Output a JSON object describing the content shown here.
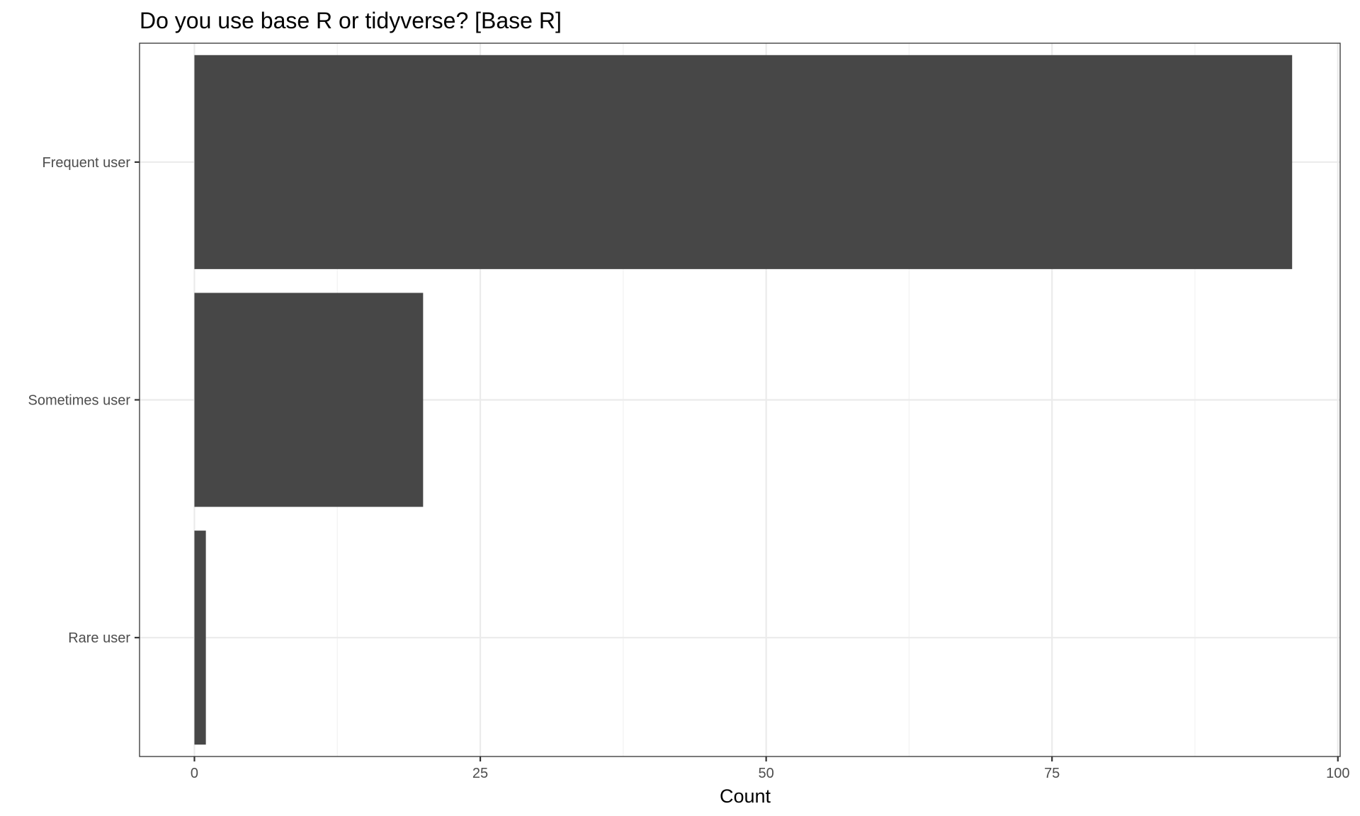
{
  "chart_data": {
    "type": "bar",
    "orientation": "horizontal",
    "title": "Do you use base R or tidyverse? [Base R]",
    "xlabel": "Count",
    "ylabel": "",
    "categories": [
      "Frequent user",
      "Sometimes user",
      "Rare user"
    ],
    "values": [
      96,
      20,
      1
    ],
    "xlim": [
      -4.8,
      100.2
    ],
    "xticks": [
      0,
      25,
      50,
      75,
      100
    ],
    "grid": true,
    "colors": {
      "bar": "#474747",
      "panel_border": "#333333",
      "grid_major": "#ebebeb",
      "grid_minor": "#f2f2f2"
    }
  }
}
